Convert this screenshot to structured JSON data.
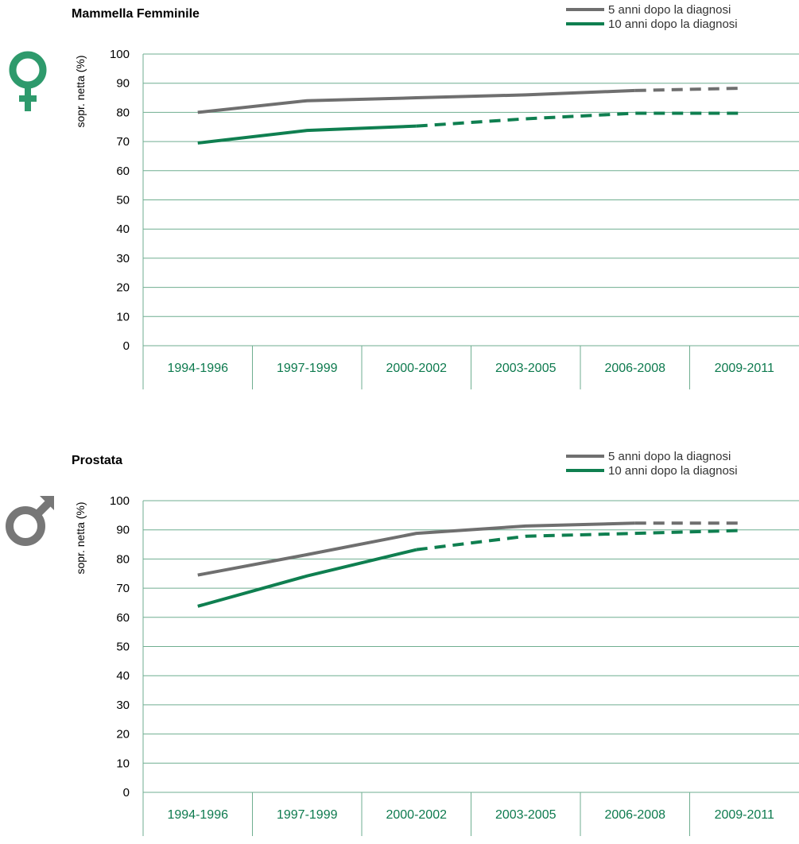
{
  "colors": {
    "five_year": "#6f6f6f",
    "ten_year": "#0f7f50",
    "grid": "#6fae90",
    "female_symbol": "#2e9a6c",
    "male_symbol": "#777777",
    "tick_text": "#0d7a4e"
  },
  "chart_data": [
    {
      "type": "line",
      "title": "Mammella Femminile",
      "icon": "female-symbol-icon",
      "ylabel": "sopr. netta (%)",
      "ylim": [
        0,
        100
      ],
      "yticks": [
        "0",
        "10",
        "20",
        "30",
        "40",
        "50",
        "60",
        "70",
        "80",
        "90",
        "100"
      ],
      "categories": [
        "1994-1996",
        "1997-1999",
        "2000-2002",
        "2003-2005",
        "2006-2008",
        "2009-2011"
      ],
      "grid": true,
      "legend_position": "top-right",
      "series": [
        {
          "name": "5 anni dopo la diagnosi",
          "color": "#6f6f6f",
          "values": [
            80,
            84,
            85,
            86,
            87.5,
            88.3
          ],
          "solid_through_index": 4
        },
        {
          "name": "10 anni dopo la diagnosi",
          "color": "#0f7f50",
          "values": [
            69.5,
            73.8,
            75.3,
            77.8,
            79.7,
            79.7
          ],
          "solid_through_index": 2
        }
      ]
    },
    {
      "type": "line",
      "title": "Prostata",
      "icon": "male-symbol-icon",
      "ylabel": "sopr. netta (%)",
      "ylim": [
        0,
        100
      ],
      "yticks": [
        "0",
        "10",
        "20",
        "30",
        "40",
        "50",
        "60",
        "70",
        "80",
        "90",
        "100"
      ],
      "categories": [
        "1994-1996",
        "1997-1999",
        "2000-2002",
        "2003-2005",
        "2006-2008",
        "2009-2011"
      ],
      "grid": true,
      "legend_position": "top-right",
      "series": [
        {
          "name": "5 anni dopo la diagnosi",
          "color": "#6f6f6f",
          "values": [
            74.5,
            81.5,
            88.8,
            91.3,
            92.3,
            92.3
          ],
          "solid_through_index": 4
        },
        {
          "name": "10 anni dopo la diagnosi",
          "color": "#0f7f50",
          "values": [
            63.8,
            74.2,
            83.2,
            87.8,
            88.8,
            89.8
          ],
          "solid_through_index": 2
        }
      ]
    }
  ]
}
